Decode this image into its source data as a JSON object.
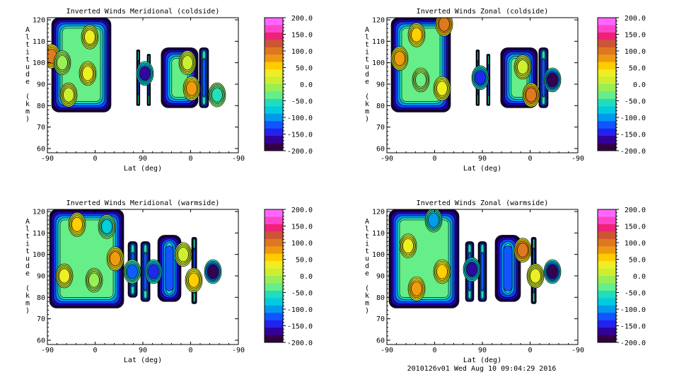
{
  "footer": "2010126v01 Wed Aug 10 09:04:29 2016",
  "colorbar": {
    "ticks": [
      "200.0",
      "150.0",
      "100.0",
      "50.0",
      "0.0",
      "-50.0",
      "-100.0",
      "-150.0",
      "-200.0"
    ],
    "colors": [
      "#ff66ff",
      "#ff44cc",
      "#ee2277",
      "#cc5533",
      "#dd7722",
      "#ee9911",
      "#ffcc00",
      "#eeee22",
      "#ccee33",
      "#99ee55",
      "#66ee88",
      "#22ddbb",
      "#00ccdd",
      "#0099ee",
      "#1155ff",
      "#2222ee",
      "#330099",
      "#330044"
    ]
  },
  "chart_data": [
    {
      "type": "heatmap",
      "title": "Inverted Winds Meridional (coldside)",
      "xlabel": "Lat (deg)",
      "ylabel": "Altitude (km)",
      "xticks": [
        "-90",
        "0",
        "90",
        "0",
        "-90"
      ],
      "yticks": [
        "60",
        "70",
        "80",
        "90",
        "100",
        "110",
        "120"
      ],
      "ylim": [
        58,
        121
      ],
      "zlim": [
        -200,
        200
      ],
      "blobs": [
        {
          "x": -80,
          "y": 103,
          "value": 100
        },
        {
          "x": -55,
          "y": 100,
          "value": -20
        },
        {
          "x": 5,
          "y": 95,
          "value": 40
        },
        {
          "x": 10,
          "y": 112,
          "value": 30
        },
        {
          "x": -40,
          "y": 85,
          "value": 20
        },
        {
          "x": 140,
          "y": 95,
          "value": -160
        },
        {
          "x": 250,
          "y": 88,
          "value": 70
        },
        {
          "x": 240,
          "y": 100,
          "value": 10
        },
        {
          "x": 310,
          "y": 85,
          "value": -60
        }
      ]
    },
    {
      "type": "heatmap",
      "title": "Inverted Winds Zonal (coldside)",
      "xlabel": "Lat (deg)",
      "ylabel": "Altitude (km)",
      "xticks": [
        "-90",
        "0",
        "90",
        "0",
        "-90"
      ],
      "yticks": [
        "60",
        "70",
        "80",
        "90",
        "100",
        "110",
        "120"
      ],
      "ylim": [
        58,
        121
      ],
      "zlim": [
        -200,
        200
      ],
      "blobs": [
        {
          "x": -60,
          "y": 102,
          "value": 70
        },
        {
          "x": 45,
          "y": 118,
          "value": 110
        },
        {
          "x": -20,
          "y": 113,
          "value": 50
        },
        {
          "x": 40,
          "y": 88,
          "value": 40
        },
        {
          "x": -10,
          "y": 92,
          "value": -30
        },
        {
          "x": 130,
          "y": 93,
          "value": -150
        },
        {
          "x": 250,
          "y": 85,
          "value": 110
        },
        {
          "x": 230,
          "y": 98,
          "value": 10
        },
        {
          "x": 300,
          "y": 92,
          "value": -200
        }
      ]
    },
    {
      "type": "heatmap",
      "title": "Inverted Winds Meridional (warmside)",
      "xlabel": "Lat (deg)",
      "ylabel": "Altitude (km)",
      "xticks": [
        "-90",
        "0",
        "90",
        "0",
        "-90"
      ],
      "yticks": [
        "60",
        "70",
        "80",
        "90",
        "100",
        "110",
        "120"
      ],
      "ylim": [
        58,
        121
      ],
      "zlim": [
        -200,
        200
      ],
      "blobs": [
        {
          "x": -20,
          "y": 114,
          "value": 50
        },
        {
          "x": 50,
          "y": 113,
          "value": -70
        },
        {
          "x": 70,
          "y": 98,
          "value": 80
        },
        {
          "x": -50,
          "y": 90,
          "value": 30
        },
        {
          "x": 20,
          "y": 88,
          "value": -20
        },
        {
          "x": 110,
          "y": 92,
          "value": -130
        },
        {
          "x": 160,
          "y": 92,
          "value": -150
        },
        {
          "x": 230,
          "y": 100,
          "value": 20
        },
        {
          "x": 255,
          "y": 88,
          "value": 60
        },
        {
          "x": 300,
          "y": 92,
          "value": -200
        }
      ]
    },
    {
      "type": "heatmap",
      "title": "Inverted Winds Zonal (warmside)",
      "xlabel": "Lat (deg)",
      "ylabel": "Altitude (km)",
      "xticks": [
        "-90",
        "0",
        "90",
        "0",
        "-90"
      ],
      "yticks": [
        "60",
        "70",
        "80",
        "90",
        "100",
        "110",
        "120"
      ],
      "ylim": [
        58,
        121
      ],
      "zlim": [
        -200,
        200
      ],
      "blobs": [
        {
          "x": -20,
          "y": 84,
          "value": 80
        },
        {
          "x": 40,
          "y": 92,
          "value": 60
        },
        {
          "x": -40,
          "y": 104,
          "value": 40
        },
        {
          "x": 20,
          "y": 116,
          "value": -100
        },
        {
          "x": 110,
          "y": 93,
          "value": -160
        },
        {
          "x": 230,
          "y": 102,
          "value": 110
        },
        {
          "x": 260,
          "y": 90,
          "value": 30
        },
        {
          "x": 300,
          "y": 92,
          "value": -200
        }
      ]
    }
  ]
}
